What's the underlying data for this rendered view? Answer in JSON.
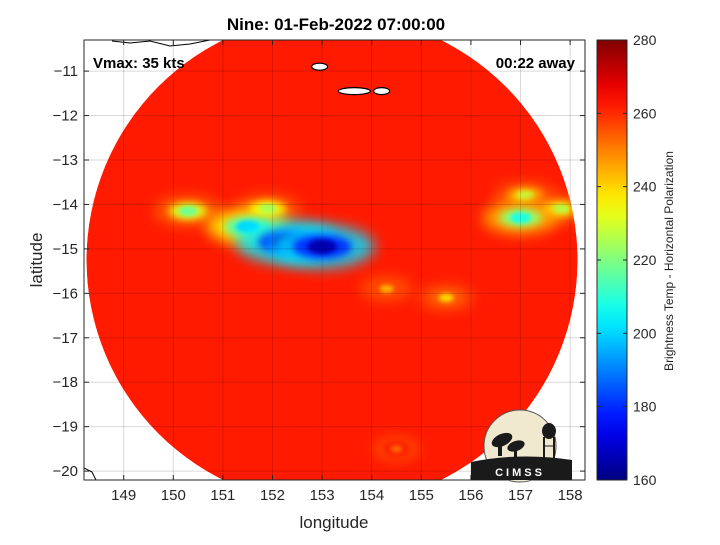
{
  "chart_data": {
    "type": "heatmap",
    "title": "Nine: 01-Feb-2022 07:00:00",
    "xlabel": "longitude",
    "ylabel": "latitude",
    "xlim": [
      148.2,
      158.3
    ],
    "ylim": [
      -20.2,
      -10.3
    ],
    "x_ticks": [
      149,
      150,
      151,
      152,
      153,
      154,
      155,
      156,
      157,
      158
    ],
    "y_ticks": [
      -11,
      -12,
      -13,
      -14,
      -15,
      -16,
      -17,
      -18,
      -19,
      -20
    ],
    "grid": true,
    "swath_center": [
      153.2,
      -15.25
    ],
    "swath_radius_deg": 4.95,
    "background_tb": 262,
    "annotations": {
      "vmax": "Vmax: 35 kts",
      "time_offset": "00:22 away"
    },
    "colorbar": {
      "label": "Brightness Temp - Horizontal Polarization",
      "range": [
        160,
        280
      ],
      "ticks": [
        160,
        180,
        200,
        220,
        240,
        260,
        280
      ],
      "colormap": "jet"
    },
    "features": [
      {
        "name": "rainband-core-west",
        "lon": 152.3,
        "lat": -14.85,
        "tb": 168
      },
      {
        "name": "rainband-core-east",
        "lon": 153.0,
        "lat": -14.95,
        "tb": 166
      },
      {
        "name": "rainband-west-1",
        "lon": 151.5,
        "lat": -14.5,
        "tb": 200
      },
      {
        "name": "rainband-west-2",
        "lon": 150.3,
        "lat": -14.15,
        "tb": 218
      },
      {
        "name": "rainband-mid",
        "lon": 151.9,
        "lat": -14.1,
        "tb": 222
      },
      {
        "name": "rainband-east-cell",
        "lon": 157.0,
        "lat": -14.3,
        "tb": 208
      },
      {
        "name": "rainband-east-upper",
        "lon": 157.1,
        "lat": -13.8,
        "tb": 228
      },
      {
        "name": "rainband-east-edge",
        "lon": 157.8,
        "lat": -14.1,
        "tb": 226
      },
      {
        "name": "southern-arc",
        "lon": 155.5,
        "lat": -16.1,
        "tb": 240
      },
      {
        "name": "southern-arc-2",
        "lon": 154.3,
        "lat": -15.9,
        "tb": 244
      },
      {
        "name": "cold-region-south",
        "lon": 154.5,
        "lat": -19.5,
        "tb": 252
      }
    ],
    "islands": [
      {
        "name": "island-1",
        "lon": 152.95,
        "lat": -10.9
      },
      {
        "name": "island-2",
        "lon": 153.65,
        "lat": -11.45
      },
      {
        "name": "island-3",
        "lon": 154.2,
        "lat": -11.45
      }
    ],
    "logo_text": "CIMSS"
  }
}
